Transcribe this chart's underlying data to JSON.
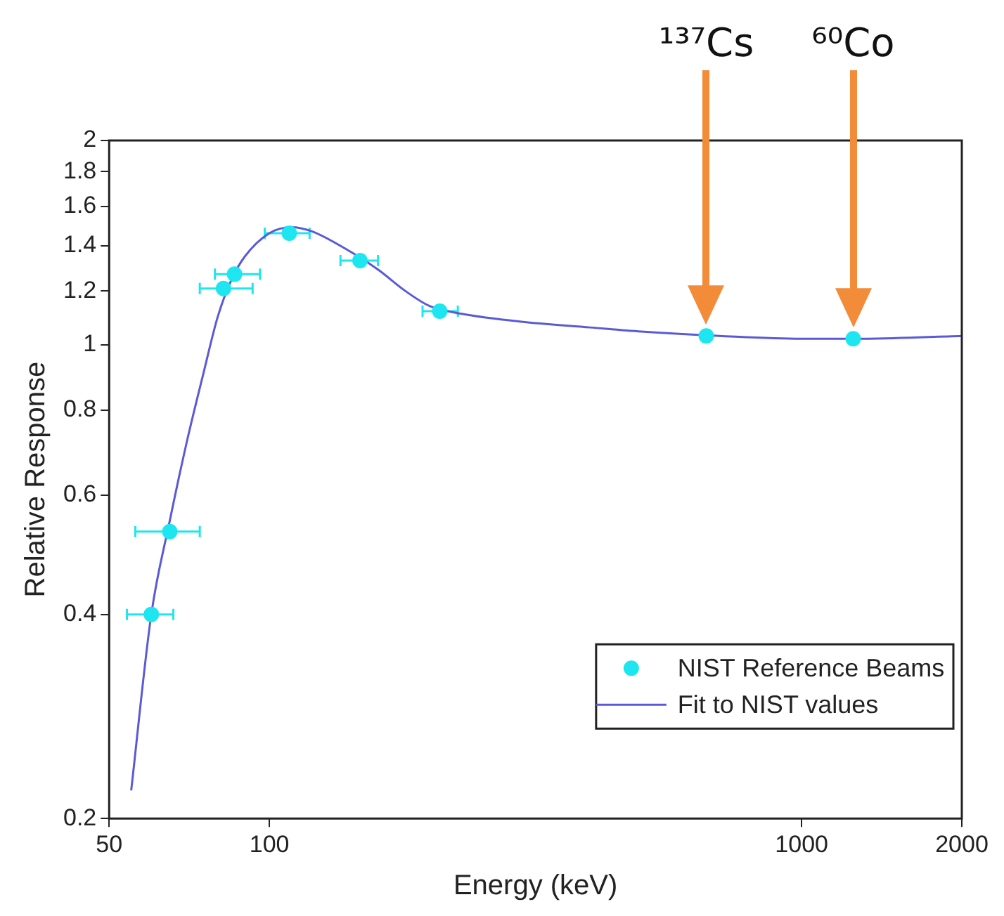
{
  "chart_data": {
    "type": "scatter",
    "xlabel": "Energy (keV)",
    "ylabel": "Relative Response",
    "log": "xy",
    "xlim": [
      50,
      2000
    ],
    "ylim": [
      0.2,
      2
    ],
    "xticks": [
      50,
      100,
      1000,
      2000
    ],
    "yticks": [
      0.2,
      0.4,
      0.6,
      0.8,
      1,
      1.2,
      1.4,
      1.6,
      1.8,
      2
    ],
    "grid": false,
    "legend": "bottom right",
    "annotations": [
      "¹³⁷Cs",
      "⁶⁰Co"
    ],
    "series": [
      {
        "name": "NIST Reference Beams",
        "type": "scatter",
        "color": "#1ee6f0",
        "marker": "circle",
        "x": [
          60,
          65,
          82,
          86,
          109,
          148,
          209,
          662,
          1250
        ],
        "values": [
          0.4,
          0.53,
          1.21,
          1.27,
          1.46,
          1.33,
          1.12,
          1.03,
          1.02
        ],
        "xerrors": [
          [
            54,
            66
          ],
          [
            56,
            74
          ],
          [
            74,
            93
          ],
          [
            79,
            96
          ],
          [
            98,
            119
          ],
          [
            136,
            160
          ],
          [
            194,
            226
          ],
          null,
          null
        ]
      },
      {
        "name": "Fit to NIST values",
        "type": "line",
        "color": "#5a5ad8",
        "marker": "none",
        "line_style": "solid",
        "x": [
          55,
          60,
          65,
          70,
          75,
          80,
          85,
          90,
          100,
          110,
          120,
          140,
          160,
          180,
          200,
          230,
          300,
          400,
          500,
          700,
          1000,
          1300,
          2000
        ],
        "values": [
          0.22,
          0.4,
          0.55,
          0.72,
          0.9,
          1.1,
          1.25,
          1.35,
          1.46,
          1.49,
          1.47,
          1.38,
          1.29,
          1.2,
          1.14,
          1.11,
          1.08,
          1.06,
          1.045,
          1.03,
          1.02,
          1.02,
          1.03
        ]
      }
    ]
  }
}
